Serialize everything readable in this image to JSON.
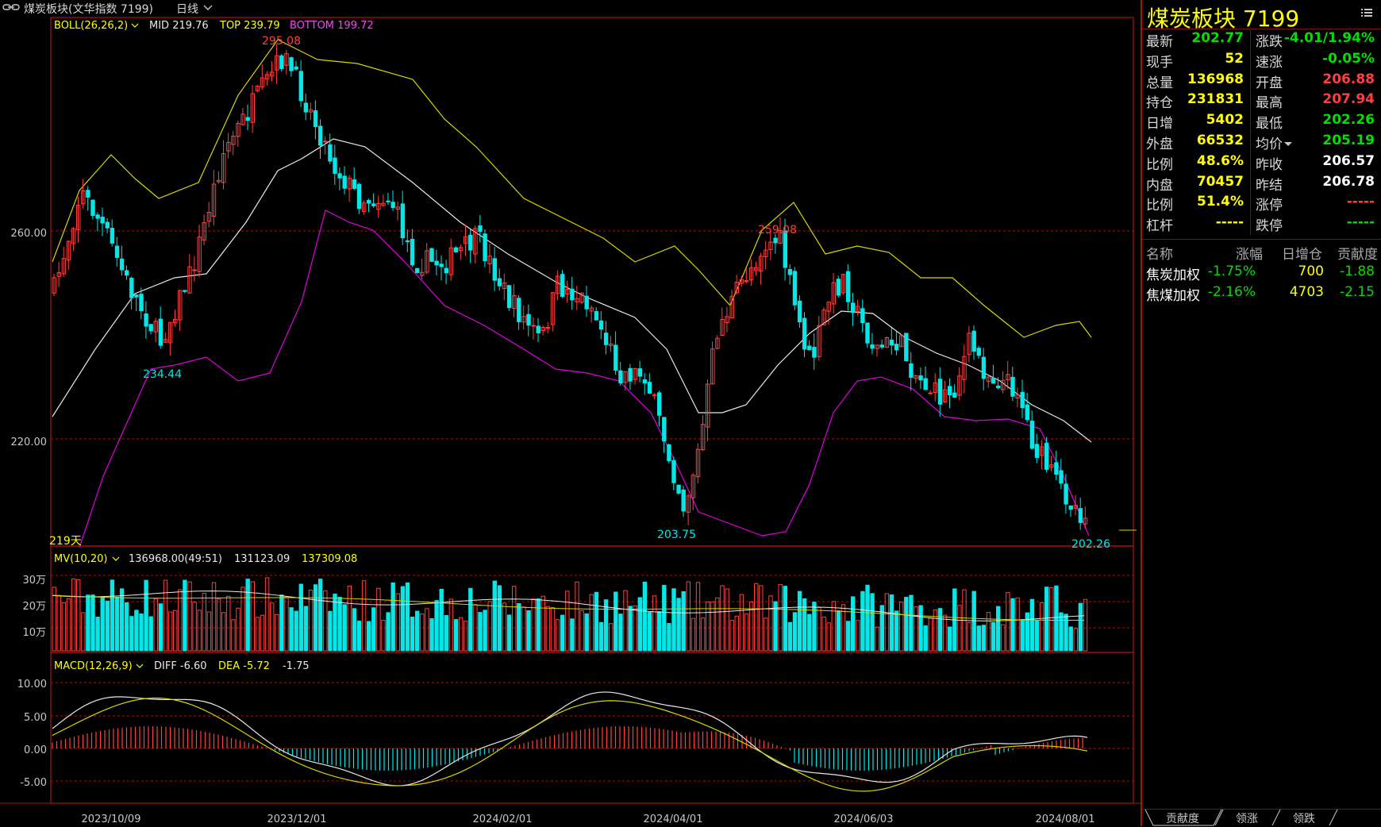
{
  "header": {
    "icon": "link-icon",
    "title": "煤炭板块(文华指数 7199)",
    "period": "日线",
    "period_icon": "chevron-down-icon"
  },
  "main_panel": {
    "indicator": "BOLL(26,26,2)",
    "mid": "MID 219.76",
    "top": "TOP 239.79",
    "bottom": "BOTTOM 199.72",
    "y_ticks": [
      "260.00",
      "220.00"
    ],
    "annotations": [
      "295.08",
      "259.08",
      "234.44",
      "203.75",
      "202.26"
    ],
    "days_label": "219天"
  },
  "volume_panel": {
    "indicator": "MV(10,20)",
    "v1": "136968.00(49:51)",
    "v2": "131123.09",
    "v3": "137309.08",
    "y_ticks": [
      "30万",
      "20万",
      "10万"
    ]
  },
  "macd_panel": {
    "indicator": "MACD(12,26,9)",
    "diff": "DIFF -6.60",
    "dea": "DEA -5.72",
    "macd": "-1.75",
    "y_ticks": [
      "10.00",
      "5.00",
      "0.00",
      "-5.00"
    ]
  },
  "x_axis": [
    "2023/10/09",
    "2023/12/01",
    "2024/02/01",
    "2024/04/01",
    "2024/06/03",
    "2024/08/01"
  ],
  "colors": {
    "up": "#ff4040",
    "down": "#00e8e8",
    "boll_top": "#d6d600",
    "boll_mid": "#e8e8e8",
    "boll_bottom": "#e000e0",
    "grid": "#b01010"
  },
  "quote_panel": {
    "title": "煤炭板块  7199",
    "menu_icon": "list-menu-icon",
    "left": [
      {
        "label": "最新",
        "value": "202.77",
        "color": "green"
      },
      {
        "label": "现手",
        "value": "52",
        "color": "yellow"
      },
      {
        "label": "总量",
        "value": "136968",
        "color": "yellow"
      },
      {
        "label": "持仓",
        "value": "231831",
        "color": "yellow"
      },
      {
        "label": "日增",
        "value": "5402",
        "color": "yellow"
      },
      {
        "label": "外盘",
        "value": "66532",
        "color": "yellow"
      },
      {
        "label": "比例",
        "value": "48.6%",
        "color": "yellow"
      },
      {
        "label": "内盘",
        "value": "70457",
        "color": "yellow"
      },
      {
        "label": "比例",
        "value": "51.4%",
        "color": "yellow"
      },
      {
        "label": "杠杆",
        "value": "-----",
        "color": "yellow"
      }
    ],
    "right": [
      {
        "label": "涨跌",
        "value": "-4.01/1.94%",
        "color": "green"
      },
      {
        "label": "速涨",
        "value": "-0.05%",
        "color": "green"
      },
      {
        "label": "开盘",
        "value": "206.88",
        "color": "red"
      },
      {
        "label": "最高",
        "value": "207.94",
        "color": "red"
      },
      {
        "label": "最低",
        "value": "202.26",
        "color": "green"
      },
      {
        "label": "均价",
        "value": "205.19",
        "color": "green"
      },
      {
        "label": "昨收",
        "value": "206.57",
        "color": "white"
      },
      {
        "label": "昨结",
        "value": "206.78",
        "color": "white"
      },
      {
        "label": "涨停",
        "value": "-----",
        "color": "red"
      },
      {
        "label": "跌停",
        "value": "-----",
        "color": "green"
      }
    ],
    "avg_icon": "dropdown-caret-icon"
  },
  "contrib_table": {
    "headers": [
      "名称",
      "涨幅",
      "日增仓",
      "贡献度"
    ],
    "rows": [
      [
        "焦炭加权",
        "-1.75%",
        "700",
        "-1.88"
      ],
      [
        "焦煤加权",
        "-2.16%",
        "4703",
        "-2.15"
      ]
    ]
  },
  "bottom_tabs": [
    "贡献度",
    "领涨",
    "领跌"
  ]
}
